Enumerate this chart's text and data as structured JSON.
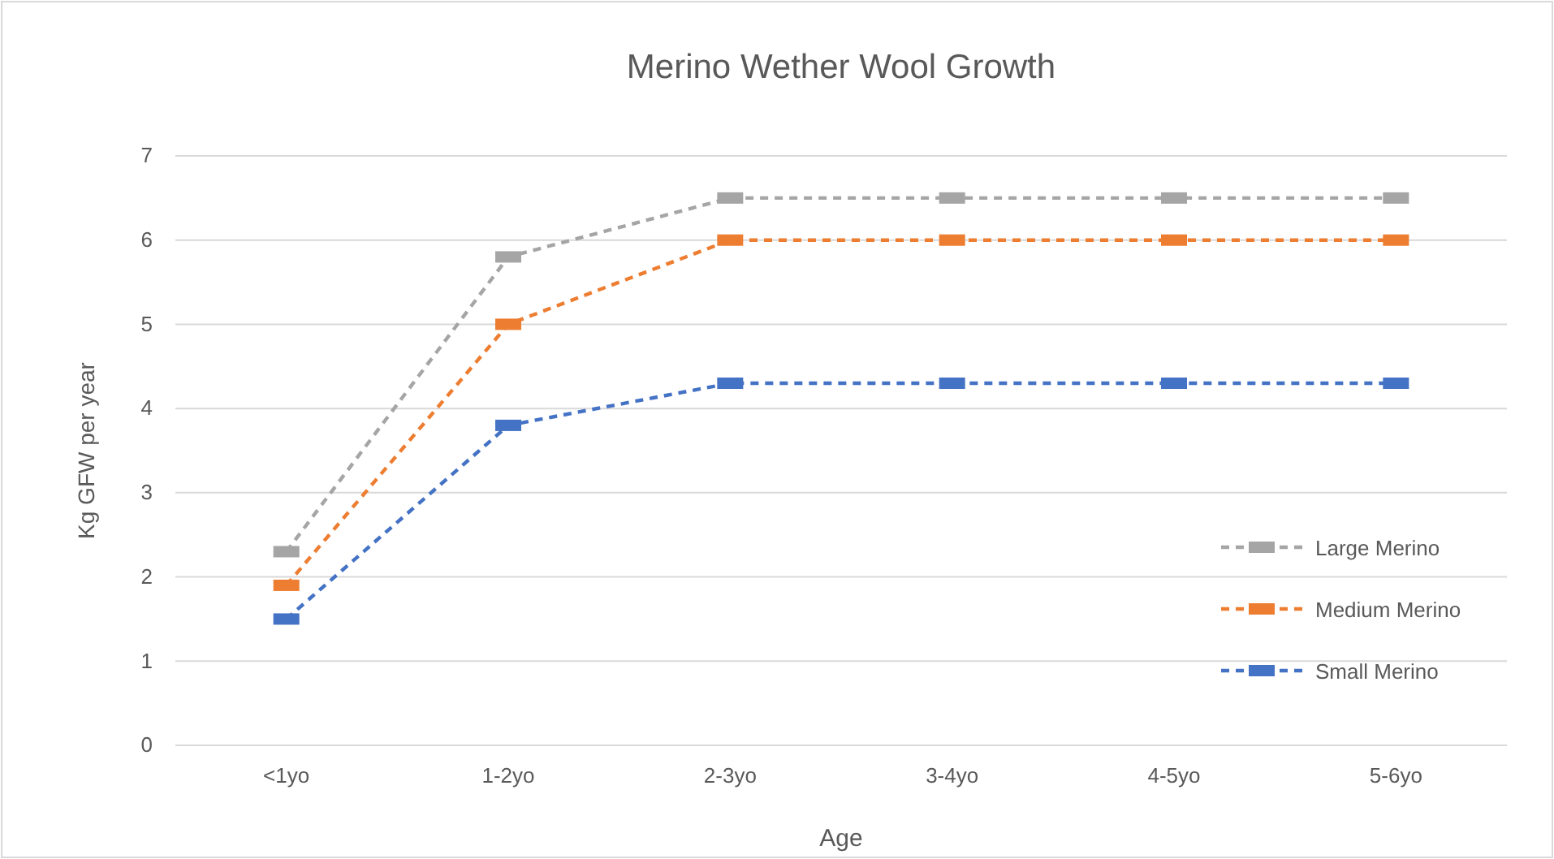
{
  "chart_data": {
    "type": "line",
    "title": "Merino Wether Wool Growth",
    "xlabel": "Age",
    "ylabel": "Kg GFW per year",
    "categories": [
      "<1yo",
      "1-2yo",
      "2-3yo",
      "3-4yo",
      "4-5yo",
      "5-6yo"
    ],
    "series": [
      {
        "name": "Large Merino",
        "color": "#a5a5a5",
        "values": [
          2.3,
          5.8,
          6.5,
          6.5,
          6.5,
          6.5
        ]
      },
      {
        "name": "Medium Merino",
        "color": "#ed7d31",
        "values": [
          1.9,
          5.0,
          6.0,
          6.0,
          6.0,
          6.0
        ]
      },
      {
        "name": "Small Merino",
        "color": "#4472c4",
        "values": [
          1.5,
          3.8,
          4.3,
          4.3,
          4.3,
          4.3
        ]
      }
    ],
    "ylim": [
      0,
      7
    ],
    "yticks": [
      0,
      1,
      2,
      3,
      4,
      5,
      6,
      7
    ],
    "grid": "y",
    "legend": "bottom right",
    "marker": "square",
    "line_style": "dashed"
  }
}
